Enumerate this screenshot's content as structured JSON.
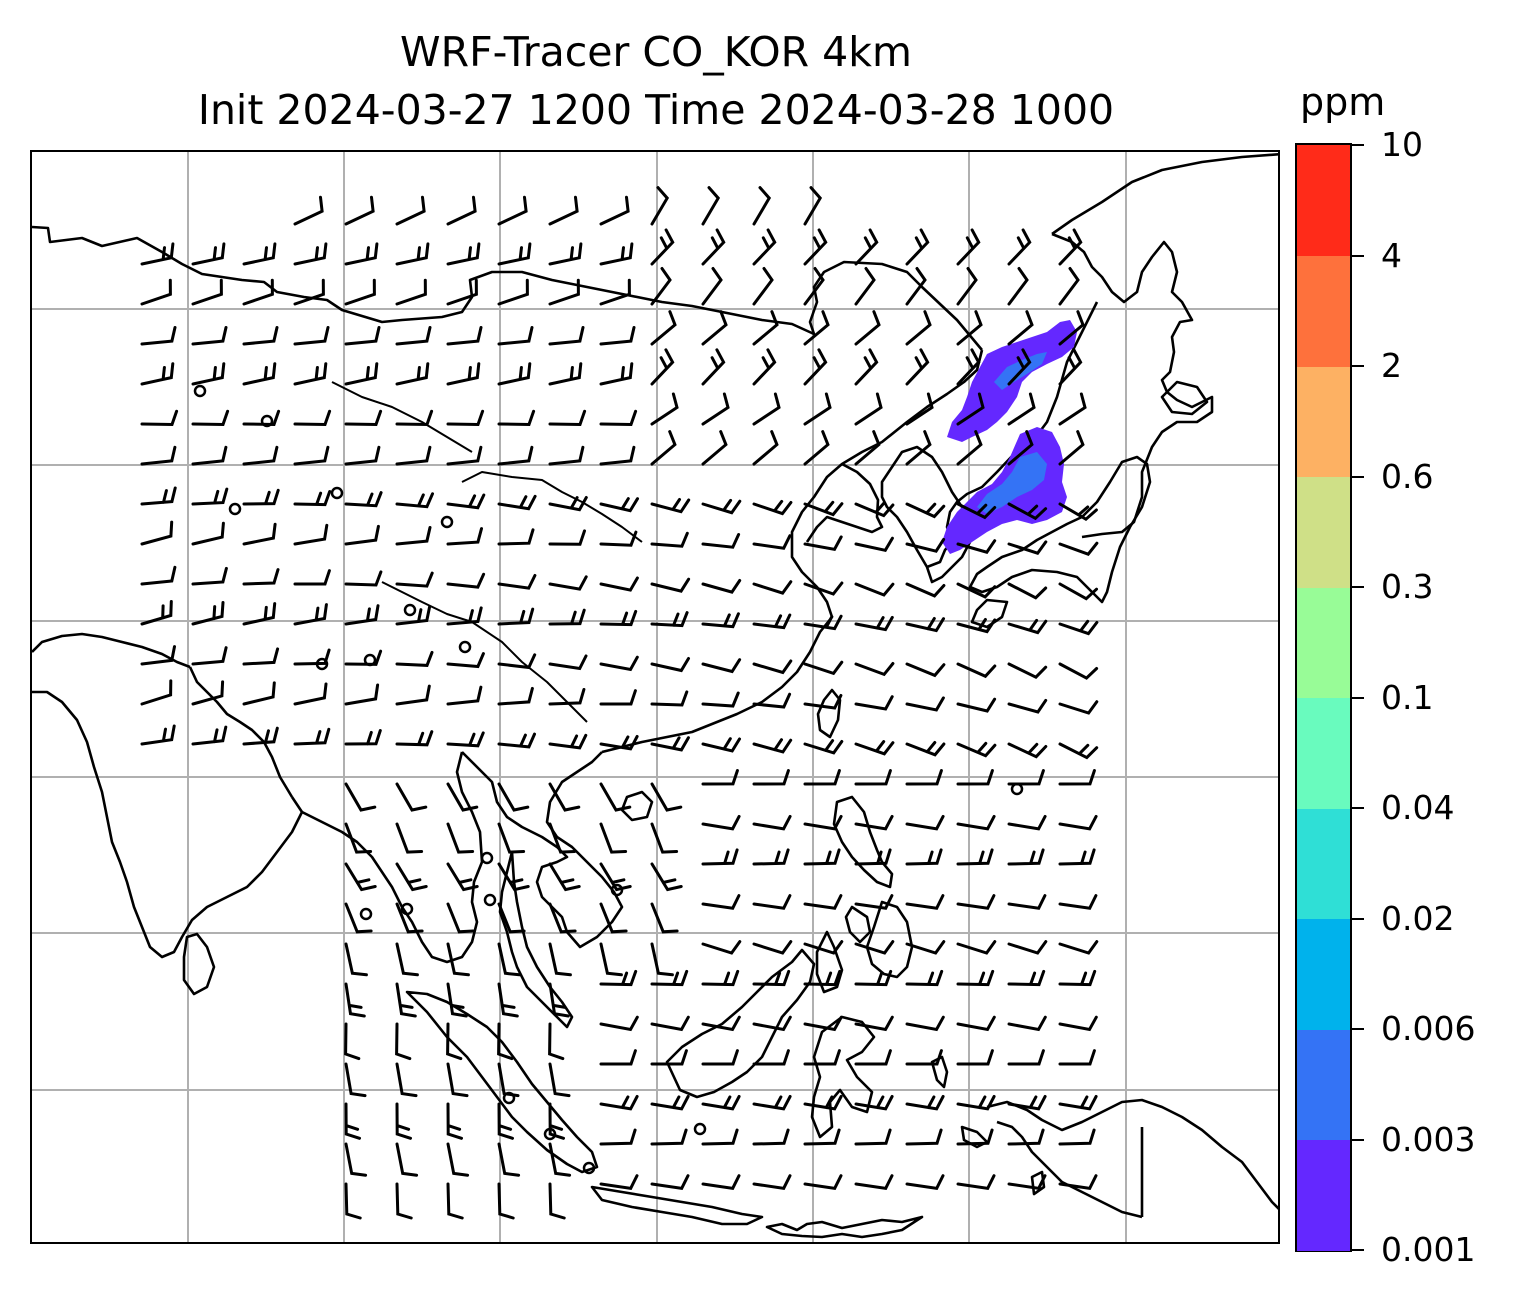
{
  "title": {
    "line1": "WRF-Tracer CO_KOR 4km",
    "line2": "Init 2024-03-27 1200 Time 2024-03-28 1000"
  },
  "colorbar": {
    "unit": "ppm",
    "levels": [
      "0.001",
      "0.003",
      "0.006",
      "0.02",
      "0.04",
      "0.1",
      "0.3",
      "0.6",
      "2",
      "4",
      "10"
    ],
    "colors": [
      "#6428ff",
      "#3473f5",
      "#00b2ec",
      "#2fdfd6",
      "#69fbbe",
      "#98fc97",
      "#cfe087",
      "#fdb163",
      "#fe713c",
      "#ff2b19"
    ]
  },
  "map": {
    "gridlines": true,
    "coastline_color": "#000000",
    "plume_levels": [
      "0.001",
      "0.003"
    ],
    "wind_field": "wind barbs"
  }
}
